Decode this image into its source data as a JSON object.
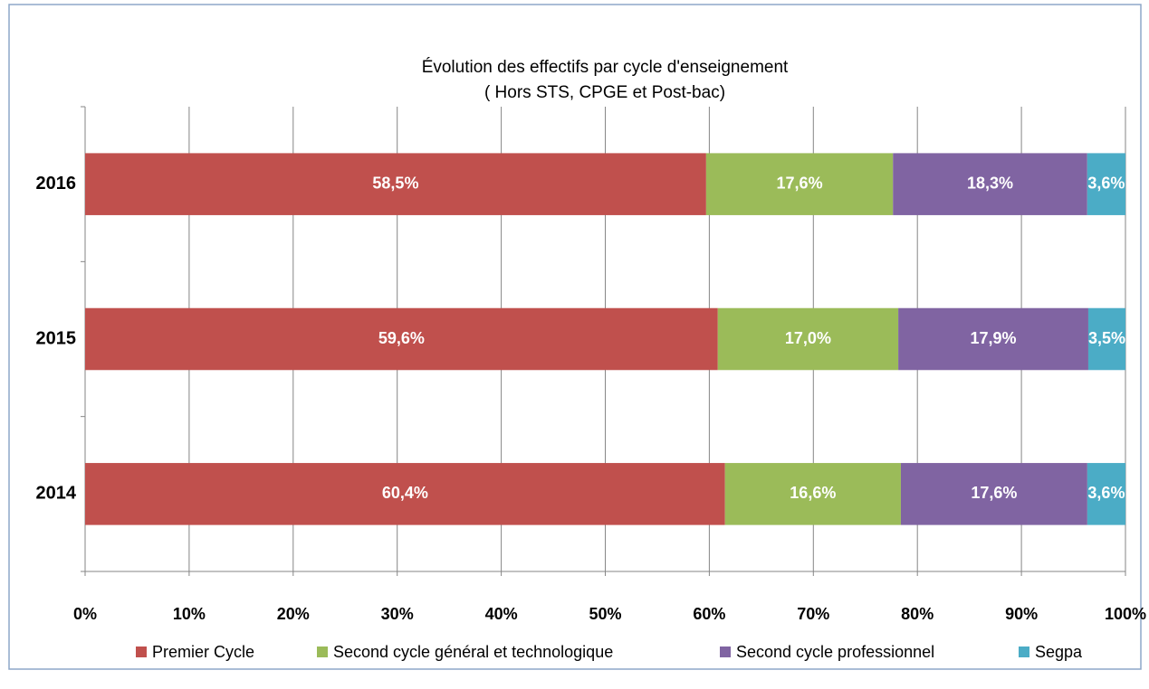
{
  "chart_data": {
    "type": "bar",
    "orientation": "horizontal",
    "stacked": "percent",
    "title": "Évolution des effectifs par cycle d'enseignement",
    "subtitle": "( Hors STS, CPGE et Post-bac)",
    "categories": [
      "2016",
      "2015",
      "2014"
    ],
    "series": [
      {
        "name": "Premier Cycle",
        "color": "#c0504d",
        "values": [
          58.5,
          59.6,
          60.4
        ],
        "value_labels": [
          "58,5%",
          "59,6%",
          "60,4%"
        ]
      },
      {
        "name": "Second cycle général et technologique",
        "color": "#9bbb59",
        "values": [
          17.6,
          17.0,
          16.6
        ],
        "value_labels": [
          "17,6%",
          "17,0%",
          "16,6%"
        ]
      },
      {
        "name": "Second cycle professionnel",
        "color": "#8064a2",
        "values": [
          18.3,
          17.9,
          17.6
        ],
        "value_labels": [
          "18,3%",
          "17,9%",
          "17,6%"
        ]
      },
      {
        "name": "Segpa",
        "color": "#4bacc6",
        "values": [
          3.6,
          3.5,
          3.6
        ],
        "value_labels": [
          "3,6%",
          "3,5%",
          "3,6%"
        ]
      }
    ],
    "xlim": [
      0,
      100
    ],
    "xticks": [
      {
        "value": 0,
        "label": "0%"
      },
      {
        "value": 10,
        "label": "10%"
      },
      {
        "value": 20,
        "label": "20%"
      },
      {
        "value": 30,
        "label": "30%"
      },
      {
        "value": 40,
        "label": "40%"
      },
      {
        "value": 50,
        "label": "50%"
      },
      {
        "value": 60,
        "label": "60%"
      },
      {
        "value": 70,
        "label": "70%"
      },
      {
        "value": 80,
        "label": "80%"
      },
      {
        "value": 90,
        "label": "90%"
      },
      {
        "value": 100,
        "label": "100%"
      }
    ],
    "grid": true,
    "legend": "bottom"
  }
}
